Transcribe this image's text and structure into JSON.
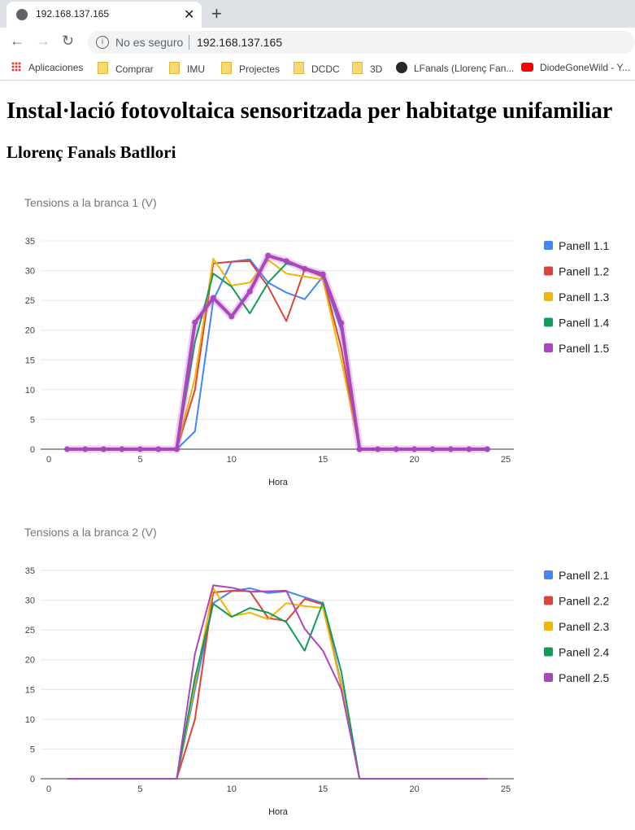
{
  "browser": {
    "tab_title": "192.168.137.165",
    "security_text": "No es seguro",
    "url": "192.168.137.165",
    "bookmarks": [
      "Aplicaciones",
      "Comprar",
      "IMU",
      "Projectes",
      "DCDC",
      "3D",
      "LFanals (Llorenç Fan...",
      "DiodeGoneWild - Y..."
    ]
  },
  "page": {
    "title": "Instal·lació fotovoltaica sensoritzada per habitatge unifamiliar",
    "subtitle": "Llorenç Fanals Batllori"
  },
  "chart_data": [
    {
      "type": "line",
      "title": "Tensions a la branca 1 (V)",
      "xlabel": "Hora",
      "ylabel": "",
      "xlim": [
        0,
        25
      ],
      "ylim": [
        0,
        35
      ],
      "xticks": [
        0,
        5,
        10,
        15,
        20,
        25
      ],
      "yticks": [
        0,
        5,
        10,
        15,
        20,
        25,
        30,
        35
      ],
      "grid": true,
      "legend_position": "right",
      "x": [
        1,
        2,
        3,
        4,
        5,
        6,
        7,
        8,
        9,
        10,
        11,
        12,
        13,
        14,
        15,
        16,
        17,
        18,
        19,
        20,
        21,
        22,
        23,
        24
      ],
      "series": [
        {
          "name": "Panell 1.1",
          "color": "#4285f4",
          "values": [
            0,
            0,
            0,
            0,
            0,
            0,
            0,
            3,
            25,
            31.5,
            31.9,
            28,
            26.3,
            25.2,
            29,
            20,
            0,
            0,
            0,
            0,
            0,
            0,
            0,
            0
          ]
        },
        {
          "name": "Panell 1.2",
          "color": "#db4437",
          "values": [
            0,
            0,
            0,
            0,
            0,
            0,
            0,
            10,
            31.2,
            31.5,
            31.6,
            27.3,
            21.5,
            30.2,
            29,
            17,
            0,
            0,
            0,
            0,
            0,
            0,
            0,
            0
          ]
        },
        {
          "name": "Panell 1.3",
          "color": "#f4b400",
          "values": [
            0,
            0,
            0,
            0,
            0,
            0,
            0,
            12,
            32,
            27.5,
            28,
            31.8,
            29.5,
            29,
            28.5,
            15,
            0,
            0,
            0,
            0,
            0,
            0,
            0,
            0
          ]
        },
        {
          "name": "Panell 1.4",
          "color": "#0f9d58",
          "values": [
            0,
            0,
            0,
            0,
            0,
            0,
            0,
            18,
            29.5,
            27.3,
            22.8,
            28,
            31.2,
            30.5,
            29.5,
            20.5,
            0,
            0,
            0,
            0,
            0,
            0,
            0,
            0
          ]
        },
        {
          "name": "Panell 1.5",
          "color": "#ab47bc",
          "values": [
            0,
            0,
            0,
            0,
            0,
            0,
            0,
            21.3,
            25.4,
            22.3,
            26.5,
            32.5,
            31.6,
            30.3,
            29.4,
            21.2,
            0,
            0,
            0,
            0,
            0,
            0,
            0,
            0
          ],
          "highlighted": true
        }
      ]
    },
    {
      "type": "line",
      "title": "Tensions a la branca 2 (V)",
      "xlabel": "Hora",
      "ylabel": "",
      "xlim": [
        0,
        25
      ],
      "ylim": [
        0,
        35
      ],
      "xticks": [
        0,
        5,
        10,
        15,
        20,
        25
      ],
      "yticks": [
        0,
        5,
        10,
        15,
        20,
        25,
        30,
        35
      ],
      "grid": true,
      "legend_position": "right",
      "x": [
        1,
        2,
        3,
        4,
        5,
        6,
        7,
        8,
        9,
        10,
        11,
        12,
        13,
        14,
        15,
        16,
        17,
        18,
        19,
        20,
        21,
        22,
        23,
        24
      ],
      "series": [
        {
          "name": "Panell 2.1",
          "color": "#4285f4",
          "values": [
            0,
            0,
            0,
            0,
            0,
            0,
            0,
            15,
            29.5,
            31.5,
            32,
            31.2,
            31.5,
            30.5,
            29.5,
            16,
            0,
            0,
            0,
            0,
            0,
            0,
            0,
            0
          ]
        },
        {
          "name": "Panell 2.2",
          "color": "#db4437",
          "values": [
            0,
            0,
            0,
            0,
            0,
            0,
            0,
            10,
            31.3,
            31.6,
            31.5,
            27,
            26.5,
            30.2,
            29.3,
            15.5,
            0,
            0,
            0,
            0,
            0,
            0,
            0,
            0
          ]
        },
        {
          "name": "Panell 2.3",
          "color": "#f4b400",
          "values": [
            0,
            0,
            0,
            0,
            0,
            0,
            0,
            16,
            32,
            27.3,
            27.9,
            26.8,
            29.5,
            29,
            28.7,
            15.8,
            0,
            0,
            0,
            0,
            0,
            0,
            0,
            0
          ]
        },
        {
          "name": "Panell 2.4",
          "color": "#0f9d58",
          "values": [
            0,
            0,
            0,
            0,
            0,
            0,
            0,
            17,
            29.4,
            27.2,
            28.7,
            27.9,
            26.3,
            21.5,
            29.6,
            18,
            0,
            0,
            0,
            0,
            0,
            0,
            0,
            0
          ]
        },
        {
          "name": "Panell 2.5",
          "color": "#ab47bc",
          "values": [
            0,
            0,
            0,
            0,
            0,
            0,
            0,
            21,
            32.5,
            32.1,
            31.4,
            31.5,
            31.6,
            25.2,
            21.5,
            15,
            0,
            0,
            0,
            0,
            0,
            0,
            0,
            0
          ]
        }
      ]
    }
  ]
}
